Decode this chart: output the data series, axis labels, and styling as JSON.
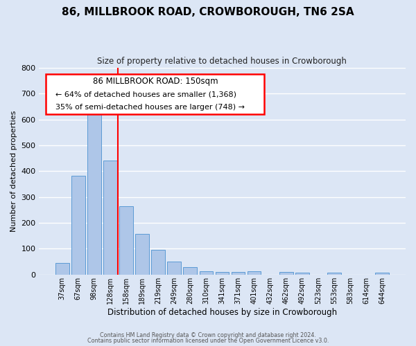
{
  "title": "86, MILLBROOK ROAD, CROWBOROUGH, TN6 2SA",
  "subtitle": "Size of property relative to detached houses in Crowborough",
  "xlabel": "Distribution of detached houses by size in Crowborough",
  "ylabel": "Number of detached properties",
  "bar_labels": [
    "37sqm",
    "67sqm",
    "98sqm",
    "128sqm",
    "158sqm",
    "189sqm",
    "219sqm",
    "249sqm",
    "280sqm",
    "310sqm",
    "341sqm",
    "371sqm",
    "401sqm",
    "432sqm",
    "462sqm",
    "492sqm",
    "523sqm",
    "553sqm",
    "583sqm",
    "614sqm",
    "644sqm"
  ],
  "bar_values": [
    46,
    383,
    623,
    440,
    265,
    157,
    96,
    51,
    30,
    14,
    11,
    11,
    13,
    0,
    10,
    8,
    0,
    8,
    0,
    0,
    7
  ],
  "bar_color": "#aec6e8",
  "bar_edge_color": "#5b9bd5",
  "background_color": "#dce6f5",
  "grid_color": "#ffffff",
  "vline_color": "red",
  "annotation_title": "86 MILLBROOK ROAD: 150sqm",
  "annotation_line1": "← 64% of detached houses are smaller (1,368)",
  "annotation_line2": "35% of semi-detached houses are larger (748) →",
  "annotation_box_color": "red",
  "ylim": [
    0,
    800
  ],
  "yticks": [
    0,
    100,
    200,
    300,
    400,
    500,
    600,
    700,
    800
  ],
  "footer1": "Contains HM Land Registry data © Crown copyright and database right 2024.",
  "footer2": "Contains public sector information licensed under the Open Government Licence v3.0."
}
